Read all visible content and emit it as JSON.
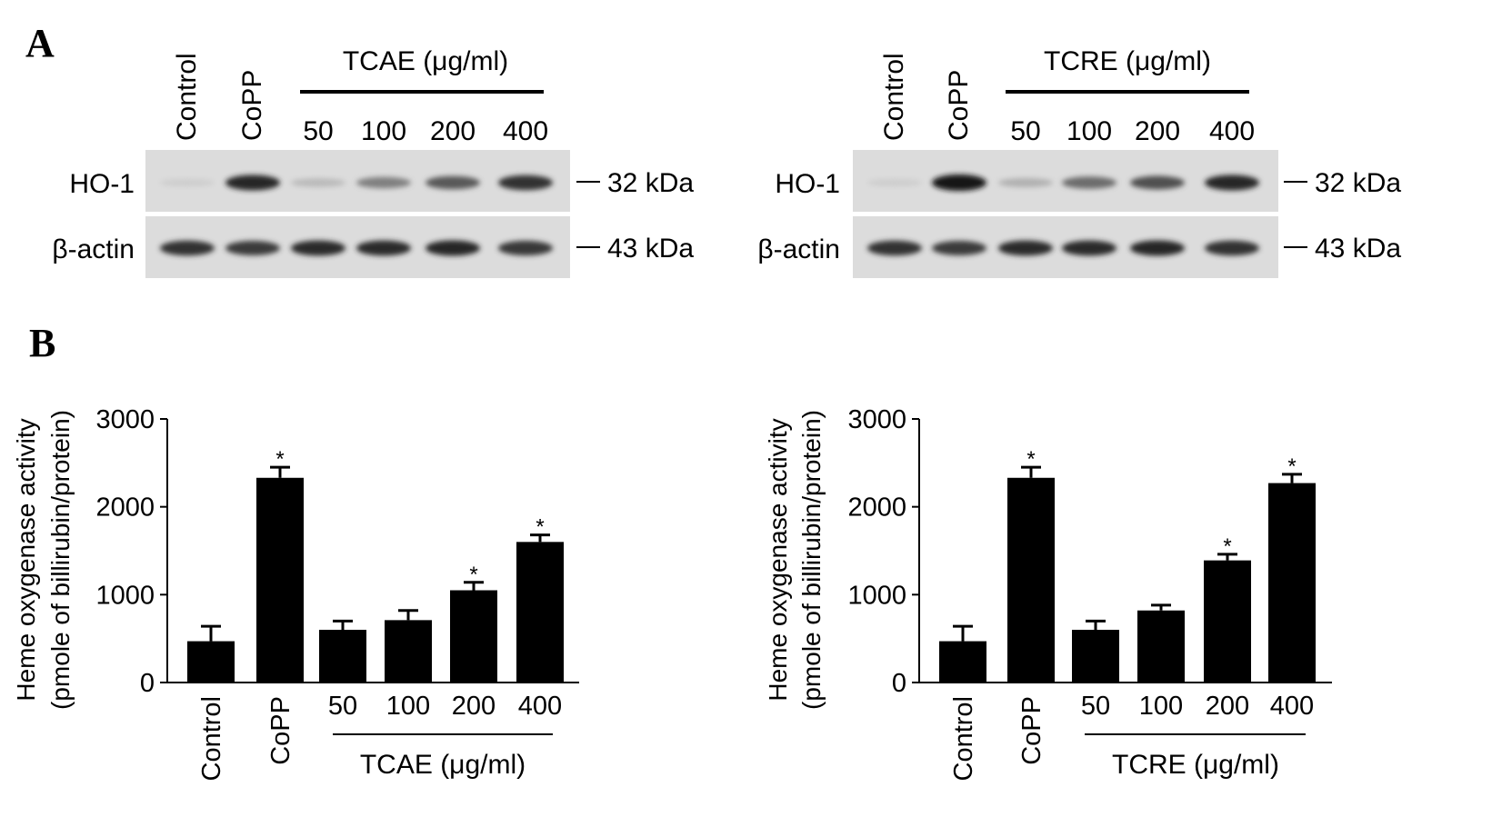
{
  "panel_a": {
    "label": "A",
    "blots": [
      {
        "lanes": [
          "Control",
          "CoPP"
        ],
        "group_label": "TCAE (μg/ml)",
        "doses": [
          "50",
          "100",
          "200",
          "400"
        ],
        "rows": [
          {
            "name": "HO-1",
            "marker": "32 kDa",
            "intensity": [
              0.05,
              0.9,
              0.15,
              0.45,
              0.65,
              0.85
            ]
          },
          {
            "name": "β-actin",
            "marker": "43 kDa",
            "intensity": [
              0.85,
              0.8,
              0.88,
              0.88,
              0.9,
              0.82
            ]
          }
        ]
      },
      {
        "lanes": [
          "Control",
          "CoPP"
        ],
        "group_label": "TCRE (μg/ml)",
        "doses": [
          "50",
          "100",
          "200",
          "400"
        ],
        "rows": [
          {
            "name": "HO-1",
            "marker": "32 kDa",
            "intensity": [
              0.05,
              1.0,
              0.2,
              0.55,
              0.7,
              0.9
            ]
          },
          {
            "name": "β-actin",
            "marker": "43 kDa",
            "intensity": [
              0.85,
              0.8,
              0.88,
              0.88,
              0.9,
              0.85
            ]
          }
        ]
      }
    ]
  },
  "panel_b": {
    "label": "B"
  },
  "chart_data": [
    {
      "type": "bar",
      "categories": [
        "Control",
        "CoPP",
        "50",
        "100",
        "200",
        "400"
      ],
      "values": [
        470,
        2330,
        600,
        710,
        1050,
        1600
      ],
      "errors": [
        170,
        120,
        100,
        110,
        90,
        80
      ],
      "significant": [
        "",
        "*",
        "",
        "",
        "*",
        "*"
      ],
      "ylabel_line1": "Heme oxygenase activity",
      "ylabel_line2": "(pmole of billirubin/protein)",
      "group_label": "TCAE (μg/ml)",
      "yticks": [
        "0",
        "1000",
        "2000",
        "3000"
      ],
      "ylim": [
        0,
        3000
      ]
    },
    {
      "type": "bar",
      "categories": [
        "Control",
        "CoPP",
        "50",
        "100",
        "200",
        "400"
      ],
      "values": [
        470,
        2330,
        600,
        820,
        1390,
        2270
      ],
      "errors": [
        170,
        120,
        100,
        60,
        70,
        100
      ],
      "significant": [
        "",
        "*",
        "",
        "",
        "*",
        "*"
      ],
      "ylabel_line1": "Heme oxygenase activity",
      "ylabel_line2": "(pmole of billirubin/protein)",
      "group_label": "TCRE (μg/ml)",
      "yticks": [
        "0",
        "1000",
        "2000",
        "3000"
      ],
      "ylim": [
        0,
        3000
      ]
    }
  ]
}
